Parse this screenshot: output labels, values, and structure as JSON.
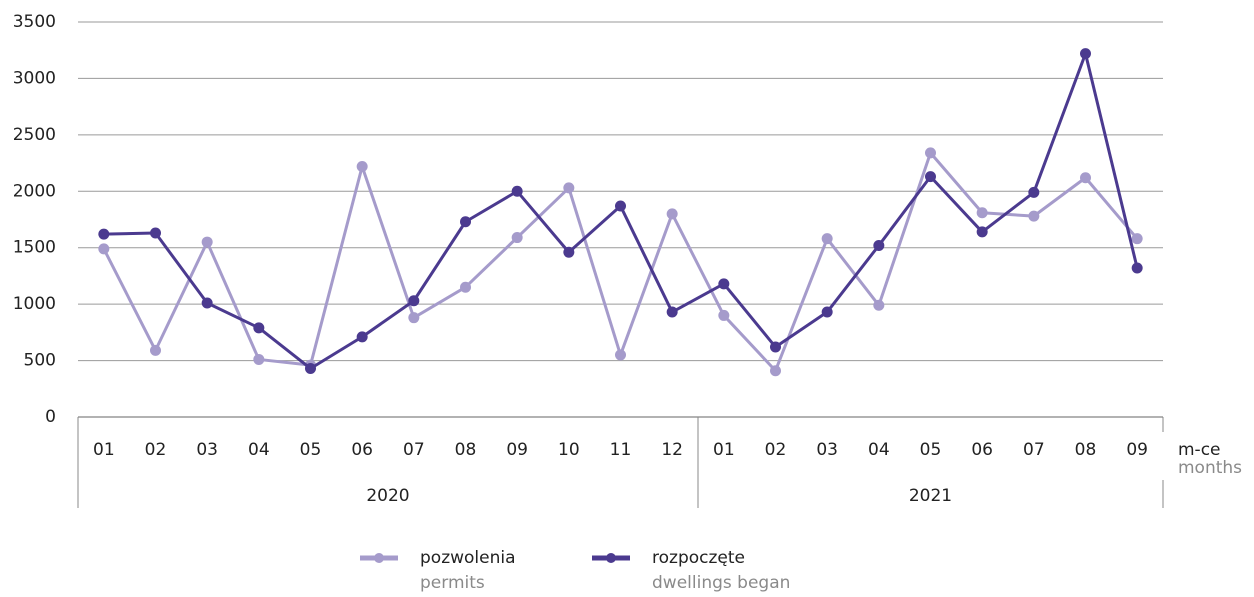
{
  "chart_data": {
    "type": "line",
    "groups": [
      {
        "label": "2020",
        "categories": [
          "01",
          "02",
          "03",
          "04",
          "05",
          "06",
          "07",
          "08",
          "09",
          "10",
          "11",
          "12"
        ]
      },
      {
        "label": "2021",
        "categories": [
          "01",
          "02",
          "03",
          "04",
          "05",
          "06",
          "07",
          "08",
          "09"
        ]
      }
    ],
    "x_label": "m-ce",
    "x_label_en": "months",
    "ylim": [
      0,
      3500
    ],
    "yticks": [
      0,
      500,
      1000,
      1500,
      2000,
      2500,
      3000,
      3500
    ],
    "grid": true,
    "series": [
      {
        "name": "pozwolenia",
        "name_en": "permits",
        "color": "#a59bcb",
        "values": [
          1490,
          590,
          1550,
          510,
          460,
          2220,
          880,
          1150,
          1590,
          2030,
          550,
          1800,
          900,
          410,
          1580,
          990,
          2340,
          1810,
          1780,
          2120,
          1580
        ]
      },
      {
        "name": "rozpoczęte",
        "name_en": "dwellings began",
        "color": "#4b3a8f",
        "values": [
          1620,
          1630,
          1010,
          790,
          430,
          710,
          1030,
          1730,
          2000,
          1460,
          1870,
          930,
          1180,
          620,
          930,
          1520,
          2130,
          1640,
          1990,
          3220,
          1320
        ]
      }
    ]
  }
}
